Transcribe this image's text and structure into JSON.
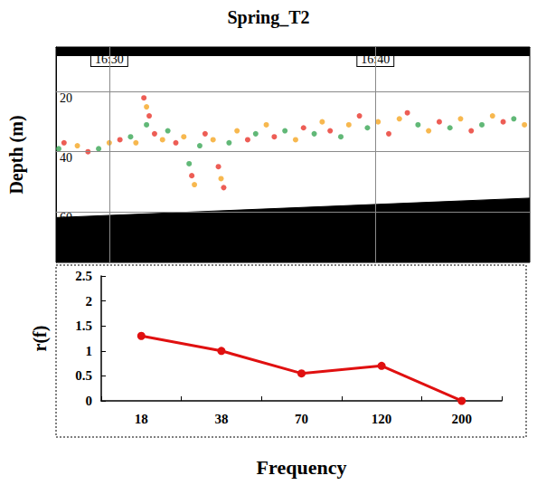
{
  "chart_data": [
    {
      "type": "scatter",
      "title": "Spring_T2",
      "y_label": "Depth (m)",
      "x": [
        28.1,
        28.3,
        28.8,
        29.2,
        29.6,
        30.0,
        30.4,
        30.8,
        31.0,
        31.3,
        31.4,
        31.5,
        31.4,
        31.7,
        32.0,
        32.2,
        32.5,
        32.8,
        33.0,
        33.1,
        33.2,
        33.4,
        33.6,
        33.9,
        34.1,
        34.2,
        34.3,
        34.5,
        34.8,
        35.2,
        35.5,
        35.9,
        36.2,
        36.6,
        37.0,
        37.3,
        37.7,
        38.0,
        38.3,
        38.7,
        39.0,
        39.4,
        39.7,
        40.1,
        40.5,
        40.9,
        41.2,
        41.6,
        42.0,
        42.4,
        42.8,
        43.2,
        43.6,
        44.0,
        44.4,
        44.8,
        45.2,
        45.6
      ],
      "values": [
        39,
        37,
        38,
        40,
        39,
        37,
        36,
        35,
        37,
        22,
        25,
        28,
        31,
        34,
        36,
        33,
        37,
        35,
        44,
        48,
        51,
        38,
        34,
        36,
        45,
        49,
        52,
        37,
        33,
        36,
        34,
        31,
        35,
        33,
        36,
        32,
        34,
        30,
        33,
        35,
        31,
        28,
        32,
        30,
        34,
        29,
        27,
        31,
        33,
        30,
        32,
        29,
        33,
        31,
        28,
        30,
        29,
        31
      ],
      "colors": [
        "#3aa655",
        "#e8352a",
        "#f5a623",
        "#e8352a",
        "#3aa655",
        "#f5a623",
        "#e8352a",
        "#3aa655",
        "#f5a623",
        "#e8352a",
        "#f5a623",
        "#e8352a",
        "#3aa655",
        "#e8352a",
        "#f5a623",
        "#3aa655",
        "#e8352a",
        "#f5a623",
        "#3aa655",
        "#e8352a",
        "#f5a623",
        "#3aa655",
        "#e8352a",
        "#f5a623",
        "#e8352a",
        "#f5a623",
        "#e8352a",
        "#3aa655",
        "#f5a623",
        "#e8352a",
        "#3aa655",
        "#f5a623",
        "#e8352a",
        "#3aa655",
        "#f5a623",
        "#e8352a",
        "#3aa655",
        "#f5a623",
        "#e8352a",
        "#3aa655",
        "#f5a623",
        "#e8352a",
        "#3aa655",
        "#f5a623",
        "#e8352a",
        "#f5a623",
        "#e8352a",
        "#3aa655",
        "#f5a623",
        "#e8352a",
        "#3aa655",
        "#f5a623",
        "#e8352a",
        "#3aa655",
        "#f5a623",
        "#e8352a",
        "#3aa655",
        "#f5a623"
      ],
      "xlim": [
        28,
        45.8
      ],
      "xticks": [
        {
          "value": 30,
          "label": "16:30"
        },
        {
          "value": 40,
          "label": "16:40"
        }
      ],
      "ylim": [
        77,
        5
      ],
      "yticks": [
        20,
        40,
        60
      ],
      "grid": true,
      "seabed": {
        "x": [
          28,
          45.8
        ],
        "depth": [
          62,
          55.5
        ]
      },
      "surface_depth": 8
    },
    {
      "type": "line",
      "y_label": "r(f)",
      "x_label": "Frequency",
      "categories": [
        "18",
        "38",
        "70",
        "120",
        "200"
      ],
      "values": [
        1.3,
        1.0,
        0.55,
        0.7,
        0.0
      ],
      "color": "#e01010",
      "marker": "circle",
      "ylim": [
        0,
        2.5
      ],
      "yticks": [
        0,
        0.5,
        1,
        1.5,
        2,
        2.5
      ],
      "grid": false
    }
  ]
}
